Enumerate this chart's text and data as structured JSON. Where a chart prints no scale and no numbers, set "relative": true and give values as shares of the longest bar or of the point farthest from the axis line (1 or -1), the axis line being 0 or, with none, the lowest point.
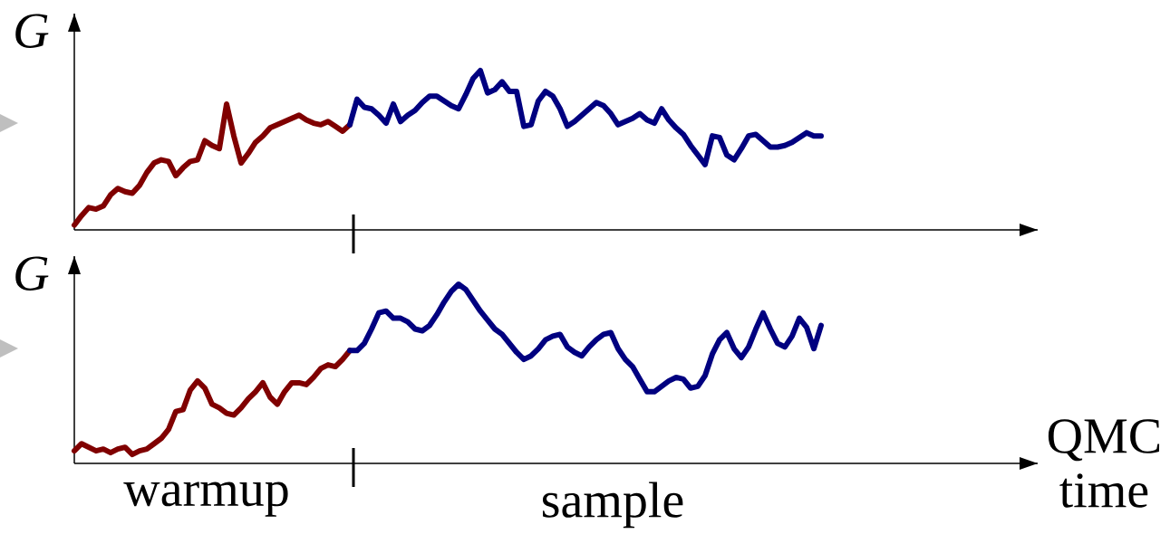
{
  "chart_data": [
    {
      "type": "line",
      "relative": true,
      "ylabel": "G",
      "categories": [
        null,
        null,
        null,
        null,
        null,
        null,
        null,
        null,
        null,
        null,
        null,
        null,
        null,
        null,
        null,
        null,
        null,
        null,
        null,
        null,
        null,
        null,
        null,
        null,
        null,
        null,
        null,
        null,
        null,
        null,
        null,
        null,
        null,
        null,
        null,
        null,
        null,
        null,
        null,
        null,
        null,
        null,
        null,
        null,
        null,
        null,
        null,
        null,
        null,
        null,
        null,
        null,
        null,
        null,
        null,
        null,
        null,
        null,
        null,
        null,
        null,
        null,
        null,
        null,
        null,
        null,
        null,
        null,
        null,
        null,
        null,
        null,
        null,
        null,
        null,
        null,
        null,
        null,
        null,
        null,
        null,
        null,
        null,
        null,
        null,
        null,
        null,
        null,
        null,
        null,
        null,
        null,
        null,
        null,
        null,
        null,
        null,
        null,
        null,
        null,
        null,
        null,
        null,
        null
      ],
      "series": [
        {
          "color": "#800000",
          "values": [
            0.03,
            0.09,
            0.14,
            0.13,
            0.15,
            0.22,
            0.26,
            0.24,
            0.23,
            0.28,
            0.36,
            0.42,
            0.44,
            0.43,
            0.34,
            0.39,
            0.43,
            0.44,
            0.56,
            0.53,
            0.51,
            0.79,
            0.59,
            0.42,
            0.48,
            0.55,
            0.59,
            0.64,
            0.66,
            0.68,
            0.7,
            0.72,
            0.69,
            0.67,
            0.66,
            0.68,
            0.65,
            0.62,
            0.66,
            null,
            null,
            null,
            null,
            null,
            null,
            null,
            null,
            null,
            null,
            null,
            null,
            null,
            null,
            null,
            null,
            null,
            null,
            null,
            null,
            null,
            null,
            null,
            null,
            null,
            null,
            null,
            null,
            null,
            null,
            null,
            null,
            null,
            null,
            null,
            null,
            null,
            null,
            null,
            null,
            null,
            null,
            null,
            null,
            null,
            null,
            null,
            null,
            null,
            null,
            null,
            null,
            null,
            null,
            null,
            null,
            null,
            null,
            null,
            null,
            null,
            null,
            null,
            null,
            null
          ]
        },
        {
          "color": "#000080",
          "values": [
            null,
            null,
            null,
            null,
            null,
            null,
            null,
            null,
            null,
            null,
            null,
            null,
            null,
            null,
            null,
            null,
            null,
            null,
            null,
            null,
            null,
            null,
            null,
            null,
            null,
            null,
            null,
            null,
            null,
            null,
            null,
            null,
            null,
            null,
            null,
            null,
            null,
            null,
            0.66,
            0.82,
            0.77,
            0.76,
            0.72,
            0.67,
            0.79,
            0.68,
            0.72,
            0.75,
            0.8,
            0.84,
            0.84,
            0.81,
            0.78,
            0.76,
            0.85,
            0.95,
            1.0,
            0.86,
            0.88,
            0.93,
            0.87,
            0.87,
            0.65,
            0.66,
            0.81,
            0.87,
            0.84,
            0.76,
            0.65,
            0.68,
            0.72,
            0.76,
            0.8,
            0.78,
            0.73,
            0.66,
            0.68,
            0.7,
            0.73,
            0.69,
            0.67,
            0.76,
            0.69,
            0.64,
            0.6,
            0.53,
            0.47,
            0.41,
            0.59,
            0.58,
            0.47,
            0.44,
            0.51,
            0.59,
            0.6,
            0.56,
            0.52,
            0.52,
            0.53,
            0.55,
            0.58,
            0.61,
            0.59,
            0.59
          ]
        }
      ]
    },
    {
      "type": "line",
      "relative": true,
      "ylabel": "G",
      "xlabel": "QMC time",
      "categories": [
        null,
        null,
        null,
        null,
        null,
        null,
        null,
        null,
        null,
        null,
        null,
        null,
        null,
        null,
        null,
        null,
        null,
        null,
        null,
        null,
        null,
        null,
        null,
        null,
        null,
        null,
        null,
        null,
        null,
        null,
        null,
        null,
        null,
        null,
        null,
        null,
        null,
        null,
        null,
        null,
        null,
        null,
        null,
        null,
        null,
        null,
        null,
        null,
        null,
        null,
        null,
        null,
        null,
        null,
        null,
        null,
        null,
        null,
        null,
        null,
        null,
        null,
        null,
        null,
        null,
        null,
        null,
        null,
        null,
        null,
        null,
        null,
        null,
        null,
        null,
        null,
        null,
        null,
        null,
        null,
        null,
        null,
        null,
        null,
        null,
        null,
        null,
        null,
        null,
        null,
        null,
        null,
        null,
        null,
        null,
        null,
        null,
        null,
        null,
        null,
        null,
        null,
        null,
        null
      ],
      "series": [
        {
          "color": "#800000",
          "values": [
            0.07,
            0.11,
            0.09,
            0.07,
            0.08,
            0.06,
            0.08,
            0.09,
            0.05,
            0.07,
            0.08,
            0.11,
            0.14,
            0.19,
            0.29,
            0.3,
            0.41,
            0.46,
            0.42,
            0.33,
            0.31,
            0.28,
            0.27,
            0.31,
            0.36,
            0.4,
            0.45,
            0.37,
            0.33,
            0.4,
            0.45,
            0.45,
            0.44,
            0.48,
            0.53,
            0.55,
            0.54,
            0.58,
            0.63,
            null,
            null,
            null,
            null,
            null,
            null,
            null,
            null,
            null,
            null,
            null,
            null,
            null,
            null,
            null,
            null,
            null,
            null,
            null,
            null,
            null,
            null,
            null,
            null,
            null,
            null,
            null,
            null,
            null,
            null,
            null,
            null,
            null,
            null,
            null,
            null,
            null,
            null,
            null,
            null,
            null,
            null,
            null,
            null,
            null,
            null,
            null,
            null,
            null,
            null,
            null,
            null,
            null,
            null,
            null,
            null,
            null,
            null,
            null,
            null,
            null,
            null,
            null,
            null,
            null
          ]
        },
        {
          "color": "#000080",
          "values": [
            null,
            null,
            null,
            null,
            null,
            null,
            null,
            null,
            null,
            null,
            null,
            null,
            null,
            null,
            null,
            null,
            null,
            null,
            null,
            null,
            null,
            null,
            null,
            null,
            null,
            null,
            null,
            null,
            null,
            null,
            null,
            null,
            null,
            null,
            null,
            null,
            null,
            null,
            0.63,
            0.63,
            0.67,
            0.75,
            0.84,
            0.85,
            0.81,
            0.81,
            0.79,
            0.75,
            0.74,
            0.77,
            0.83,
            0.9,
            0.96,
            1.0,
            0.97,
            0.91,
            0.85,
            0.8,
            0.75,
            0.72,
            0.67,
            0.62,
            0.58,
            0.6,
            0.64,
            0.69,
            0.71,
            0.72,
            0.65,
            0.62,
            0.6,
            0.65,
            0.69,
            0.72,
            0.73,
            0.64,
            0.58,
            0.54,
            0.47,
            0.4,
            0.4,
            0.43,
            0.46,
            0.48,
            0.47,
            0.42,
            0.43,
            0.49,
            0.61,
            0.69,
            0.73,
            0.64,
            0.59,
            0.65,
            0.75,
            0.84,
            0.75,
            0.67,
            0.65,
            0.71,
            0.81,
            0.76,
            0.64,
            0.77
          ]
        }
      ],
      "annotations": [
        "warmup",
        "sample"
      ]
    }
  ]
}
